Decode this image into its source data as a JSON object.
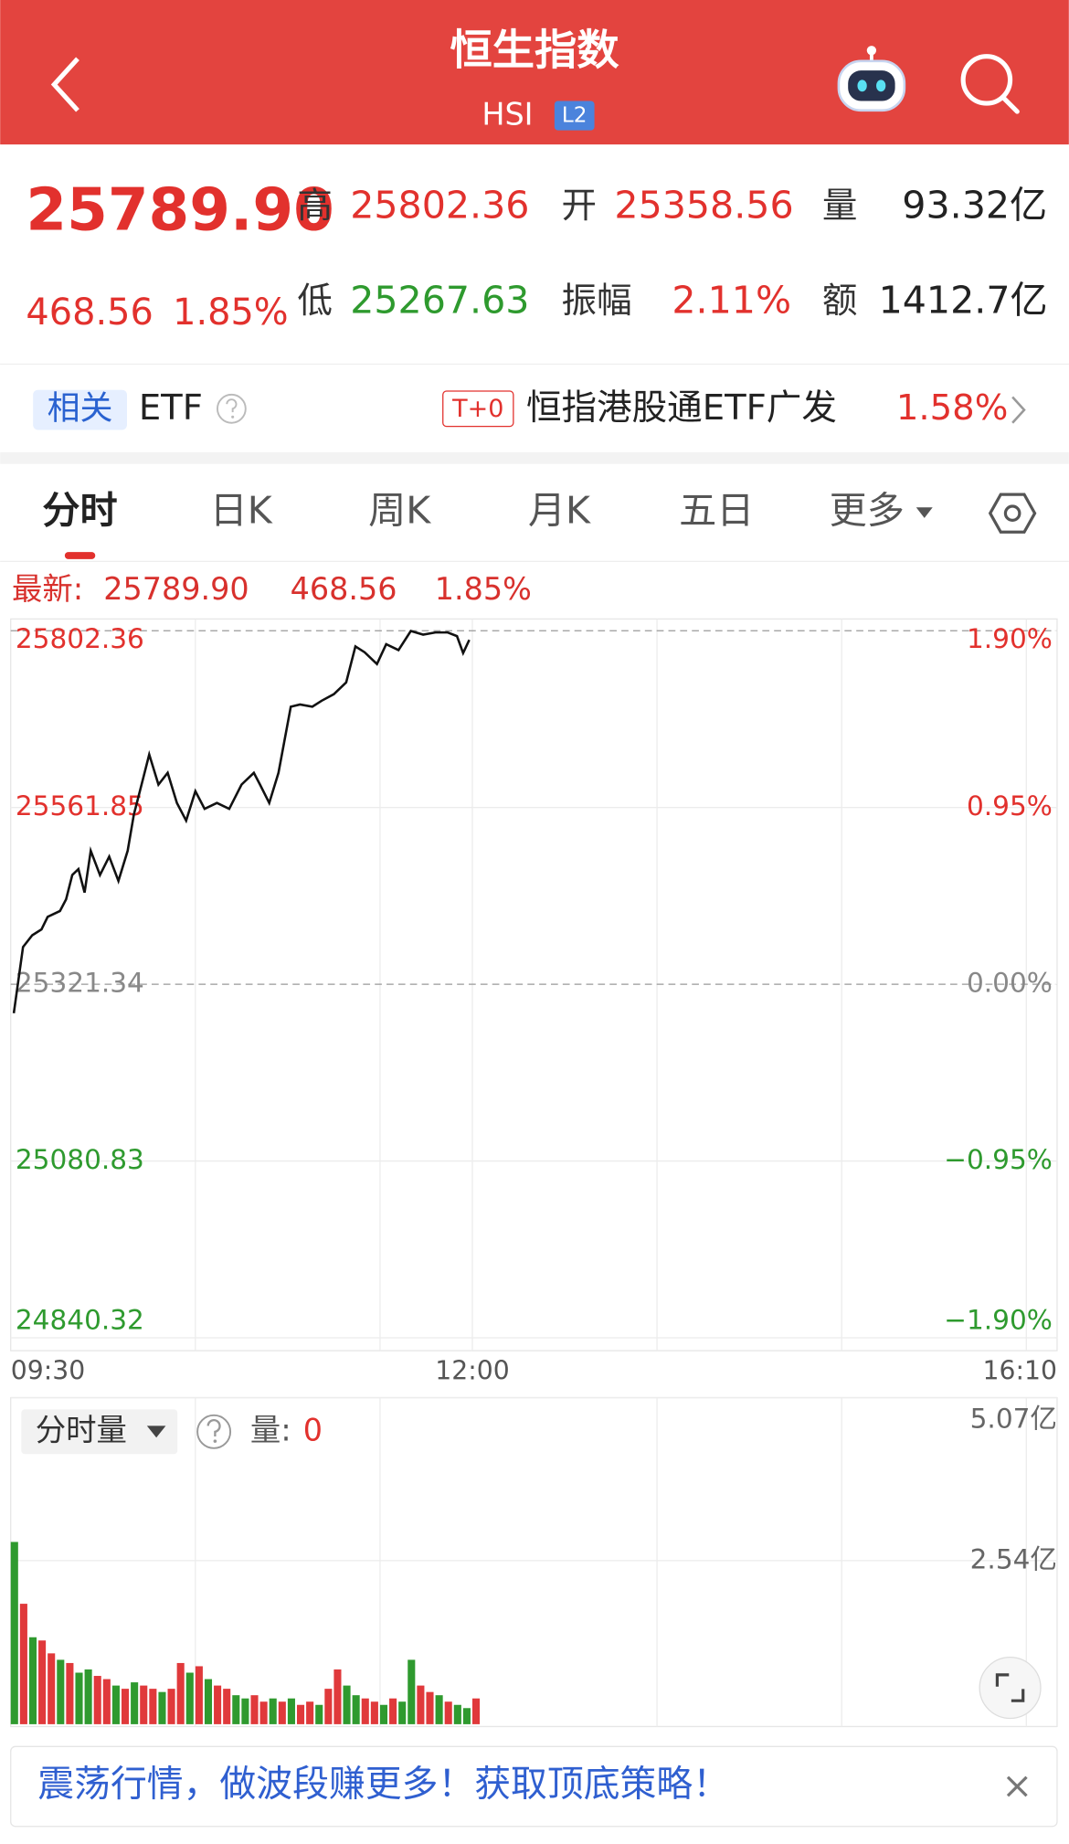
{
  "header": {
    "title": "恒生指数",
    "code": "HSI",
    "badge": "L2"
  },
  "quote": {
    "price": "25789.90",
    "change": "468.56",
    "pct": "1.85%",
    "high_label": "高",
    "high": "25802.36",
    "open_label": "开",
    "open": "25358.56",
    "volume_label": "量",
    "volume": "93.32亿",
    "low_label": "低",
    "low": "25267.63",
    "amplitude_label": "振幅",
    "amplitude": "2.11%",
    "amount_label": "额",
    "amount": "1412.7亿"
  },
  "etf": {
    "tag": "相关",
    "label": "ETF",
    "badge": "T+0",
    "name": "恒指港股通ETF广发",
    "pct": "1.58%"
  },
  "tabs": [
    "分时",
    "日K",
    "周K",
    "月K",
    "五日",
    "更多"
  ],
  "latest": {
    "label": "最新:",
    "price": "25789.90",
    "change": "468.56",
    "pct": "1.85%"
  },
  "chart_data": [
    {
      "type": "line",
      "color": "#111111",
      "x": [
        1,
        4,
        7,
        10,
        12,
        16,
        18,
        20,
        22,
        24,
        26,
        29,
        32,
        35,
        38,
        40,
        43,
        45,
        48,
        51,
        54,
        57,
        60,
        63,
        67,
        71,
        75,
        79,
        81,
        84,
        87,
        91,
        94,
        98,
        101,
        105,
        109,
        112,
        115,
        119,
        122,
        126,
        130,
        134,
        138,
        142,
        145,
        147,
        149
      ],
      "series": [
        {
          "values": [
            25282,
            25372,
            25388,
            25396,
            25413,
            25421,
            25437,
            25470,
            25478,
            25446,
            25503,
            25470,
            25495,
            25462,
            25503,
            25552,
            25601,
            25634,
            25593,
            25609,
            25568,
            25544,
            25584,
            25560,
            25568,
            25560,
            25593,
            25609,
            25593,
            25568,
            25609,
            25699,
            25702,
            25699,
            25707,
            25716,
            25732,
            25781,
            25773,
            25757,
            25784,
            25776,
            25802,
            25797,
            25800,
            25800,
            25795,
            25772,
            25789.9
          ]
        }
      ],
      "xlim": [
        0,
        340
      ],
      "xticks": [
        {
          "value": 0,
          "label": "09:30"
        },
        {
          "value": 150,
          "label": "12:00"
        },
        {
          "value": 340,
          "label": "16:10"
        }
      ],
      "xgrid": [
        60,
        120,
        210,
        270,
        330
      ],
      "ylim": [
        24840.32,
        25802.36
      ],
      "yticks": [
        25802.36,
        25561.85,
        25321.34,
        25080.83,
        24840.32
      ],
      "y2lim": [
        -1.9,
        1.9
      ],
      "y2ticks": [
        {
          "value": 1.9,
          "label": "1.90%"
        },
        {
          "value": 0.95,
          "label": "0.95%"
        },
        {
          "value": 0,
          "label": "0.00%"
        },
        {
          "value": -0.95,
          "label": "−0.95%"
        },
        {
          "value": -1.9,
          "label": "−1.90%"
        }
      ]
    },
    {
      "type": "bar",
      "selector": "分时量",
      "readout_label": "量:",
      "readout_value": "0",
      "x": [
        0,
        3,
        6,
        9,
        12,
        15,
        18,
        21,
        24,
        27,
        30,
        33,
        36,
        39,
        42,
        45,
        48,
        51,
        54,
        57,
        60,
        63,
        66,
        69,
        72,
        75,
        78,
        81,
        84,
        87,
        90,
        93,
        96,
        99,
        102,
        105,
        108,
        111,
        114,
        117,
        120,
        123,
        126,
        129,
        132,
        135,
        138,
        141,
        144,
        147,
        150
      ],
      "values": [
        2.83,
        1.87,
        1.35,
        1.3,
        1.1,
        1.0,
        0.95,
        0.8,
        0.85,
        0.75,
        0.7,
        0.6,
        0.55,
        0.65,
        0.6,
        0.55,
        0.5,
        0.55,
        0.95,
        0.8,
        0.9,
        0.7,
        0.6,
        0.55,
        0.45,
        0.4,
        0.45,
        0.35,
        0.4,
        0.35,
        0.4,
        0.3,
        0.35,
        0.3,
        0.55,
        0.85,
        0.6,
        0.45,
        0.4,
        0.35,
        0.3,
        0.4,
        0.35,
        1.0,
        0.6,
        0.5,
        0.45,
        0.35,
        0.3,
        0.25,
        0.4
      ],
      "colors": [
        "#2f9a2f",
        "#e0393b",
        "#2f9a2f",
        "#e0393b",
        "#e0393b",
        "#2f9a2f",
        "#e0393b",
        "#2f9a2f",
        "#2f9a2f",
        "#e0393b",
        "#e0393b",
        "#2f9a2f",
        "#e0393b",
        "#2f9a2f",
        "#e0393b",
        "#e0393b",
        "#2f9a2f",
        "#e0393b",
        "#e0393b",
        "#2f9a2f",
        "#e0393b",
        "#2f9a2f",
        "#e0393b",
        "#e0393b",
        "#2f9a2f",
        "#2f9a2f",
        "#e0393b",
        "#e0393b",
        "#2f9a2f",
        "#e0393b",
        "#2f9a2f",
        "#e0393b",
        "#e0393b",
        "#2f9a2f",
        "#e0393b",
        "#e0393b",
        "#2f9a2f",
        "#2f9a2f",
        "#e0393b",
        "#e0393b",
        "#2f9a2f",
        "#e0393b",
        "#2f9a2f",
        "#2f9a2f",
        "#e0393b",
        "#e0393b",
        "#2f9a2f",
        "#e0393b",
        "#2f9a2f",
        "#2f9a2f",
        "#e0393b"
      ],
      "xlim": [
        0,
        340
      ],
      "ylim": [
        0,
        5.07
      ],
      "yticks": [
        {
          "value": 5.07,
          "label": "5.07亿"
        },
        {
          "value": 2.54,
          "label": "2.54亿"
        }
      ]
    }
  ],
  "banner": {
    "text": "震荡行情，做波段赚更多！获取顶底策略！"
  }
}
